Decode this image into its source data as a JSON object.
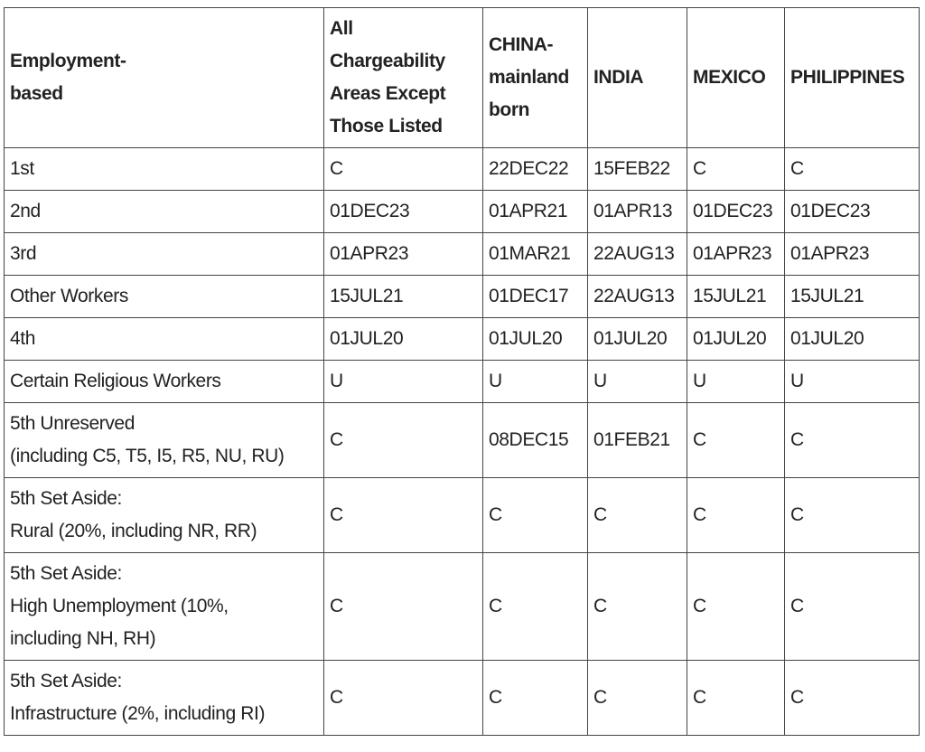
{
  "table": {
    "header": [
      [
        "Employment-",
        "based"
      ],
      [
        "All",
        "Chargeability",
        "Areas Except",
        "Those Listed"
      ],
      [
        "CHINA-",
        "mainland",
        "born"
      ],
      "INDIA",
      "MEXICO",
      "PHILIPPINES"
    ],
    "rows": [
      [
        "1st",
        "C",
        "22DEC22",
        "15FEB22",
        "C",
        "C"
      ],
      [
        "2nd",
        "01DEC23",
        "01APR21",
        "01APR13",
        "01DEC23",
        "01DEC23"
      ],
      [
        "3rd",
        "01APR23",
        "01MAR21",
        "22AUG13",
        "01APR23",
        "01APR23"
      ],
      [
        "Other Workers",
        "15JUL21",
        "01DEC17",
        "22AUG13",
        "15JUL21",
        "15JUL21"
      ],
      [
        "4th",
        "01JUL20",
        "01JUL20",
        "01JUL20",
        "01JUL20",
        "01JUL20"
      ],
      [
        "Certain Religious Workers",
        "U",
        "U",
        "U",
        "U",
        "U"
      ],
      [
        [
          "5th Unreserved",
          "(including C5, T5, I5, R5, NU, RU)"
        ],
        "C",
        "08DEC15",
        "01FEB21",
        "C",
        "C"
      ],
      [
        [
          "5th Set Aside:",
          "Rural (20%, including NR, RR)"
        ],
        "C",
        "C",
        "C",
        "C",
        "C"
      ],
      [
        [
          "5th Set Aside:",
          "High Unemployment (10%,",
          "including NH, RH)"
        ],
        "C",
        "C",
        "C",
        "C",
        "C"
      ],
      [
        [
          "5th Set Aside:",
          "Infrastructure (2%, including RI)"
        ],
        "C",
        "C",
        "C",
        "C",
        "C"
      ]
    ]
  }
}
